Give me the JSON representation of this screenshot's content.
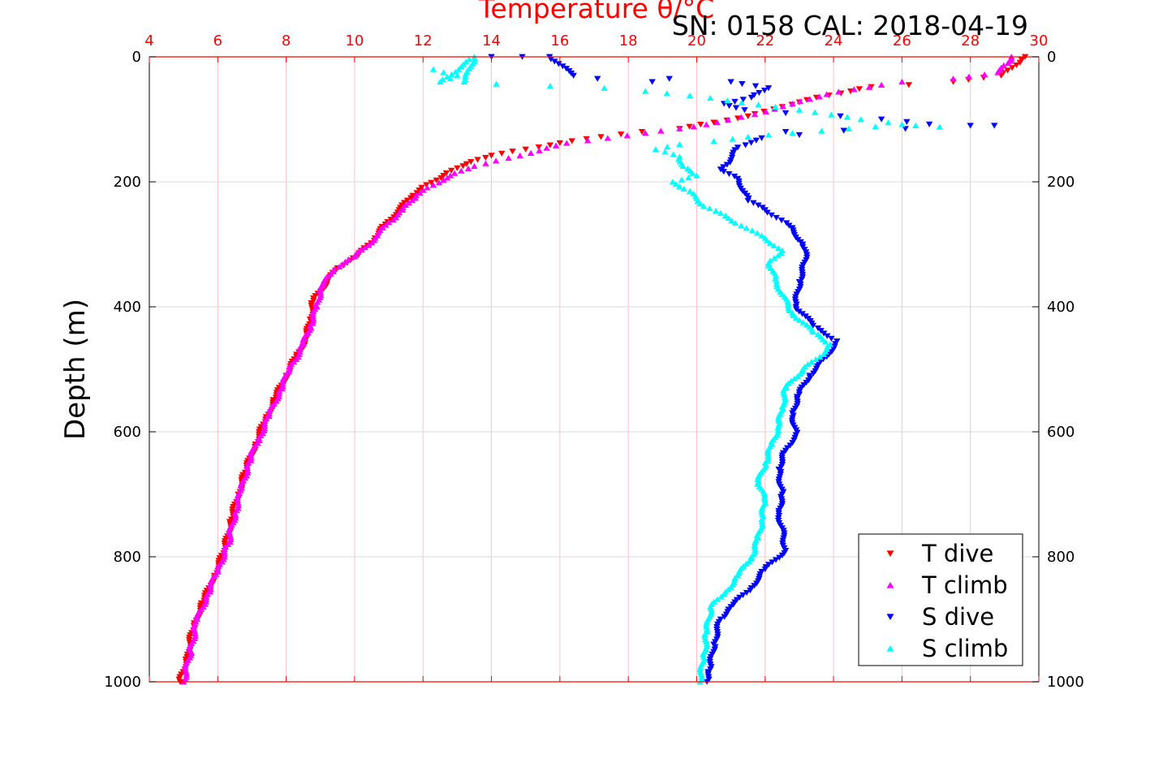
{
  "chart_data": {
    "type": "scatter",
    "title": "Temperature θ/°C",
    "subtitle": "SN: 0158  CAL: 2018-04-19",
    "ylabel": "Depth (m)",
    "x_top": {
      "label": "Temperature θ/°C",
      "range": [
        4,
        30
      ],
      "ticks": [
        "4",
        "6",
        "8",
        "10",
        "12",
        "14",
        "16",
        "18",
        "20",
        "22",
        "24",
        "26",
        "28",
        "30"
      ],
      "color": "#ff0000"
    },
    "y": {
      "range": [
        0,
        1000
      ],
      "reversed": true,
      "ticks": [
        "0",
        "200",
        "400",
        "600",
        "800",
        "1000"
      ]
    },
    "grid": true,
    "legend_position": "bottom-right",
    "colors": {
      "t_dive": "#ff0000",
      "t_climb": "#ff00ff",
      "s_dive": "#0000ff",
      "s_climb": "#00ffff",
      "axis_top": "#ff0000",
      "grid_vertical": "#ffc0cb",
      "grid_horizontal": "#d9d9d9"
    },
    "series": [
      {
        "name": "T dive",
        "marker": "triangle-down",
        "color": "#ff0000",
        "points": [
          [
            29.6,
            0
          ],
          [
            29.5,
            5
          ],
          [
            28.9,
            30
          ],
          [
            27.5,
            40
          ],
          [
            26.2,
            45
          ],
          [
            25.1,
            48
          ],
          [
            24.5,
            55
          ],
          [
            23.5,
            65
          ],
          [
            22.5,
            80
          ],
          [
            21.5,
            95
          ],
          [
            20.5,
            105
          ],
          [
            19.5,
            115
          ],
          [
            18.4,
            120
          ],
          [
            17.2,
            128
          ],
          [
            16.0,
            138
          ],
          [
            15.0,
            148
          ],
          [
            14.0,
            158
          ],
          [
            13.4,
            168
          ],
          [
            13.0,
            178
          ],
          [
            12.6,
            190
          ],
          [
            12.1,
            205
          ],
          [
            11.7,
            222
          ],
          [
            11.3,
            245
          ],
          [
            10.9,
            268
          ],
          [
            10.6,
            290
          ],
          [
            10.1,
            318
          ],
          [
            9.5,
            338
          ],
          [
            9.2,
            360
          ],
          [
            8.8,
            390
          ],
          [
            8.7,
            420
          ],
          [
            8.6,
            450
          ],
          [
            8.3,
            480
          ],
          [
            8.0,
            510
          ],
          [
            7.7,
            545
          ],
          [
            7.4,
            580
          ],
          [
            7.1,
            620
          ],
          [
            6.8,
            665
          ],
          [
            6.6,
            700
          ],
          [
            6.4,
            740
          ],
          [
            6.2,
            790
          ],
          [
            5.9,
            830
          ],
          [
            5.6,
            870
          ],
          [
            5.3,
            910
          ],
          [
            5.1,
            960
          ],
          [
            4.9,
            1000
          ]
        ]
      },
      {
        "name": "T climb",
        "marker": "triangle-up",
        "color": "#ff00ff",
        "points": [
          [
            29.2,
            0
          ],
          [
            29.1,
            10
          ],
          [
            28.8,
            25
          ],
          [
            27.5,
            35
          ],
          [
            26.0,
            40
          ],
          [
            25.4,
            45
          ],
          [
            24.6,
            52
          ],
          [
            23.8,
            60
          ],
          [
            22.8,
            75
          ],
          [
            21.7,
            92
          ],
          [
            20.6,
            105
          ],
          [
            19.5,
            115
          ],
          [
            18.5,
            122
          ],
          [
            17.4,
            130
          ],
          [
            16.2,
            138
          ],
          [
            15.4,
            150
          ],
          [
            14.5,
            162
          ],
          [
            13.5,
            175
          ],
          [
            12.8,
            190
          ],
          [
            12.3,
            205
          ],
          [
            11.8,
            222
          ],
          [
            11.4,
            245
          ],
          [
            11.0,
            265
          ],
          [
            10.6,
            290
          ],
          [
            10.0,
            320
          ],
          [
            9.4,
            340
          ],
          [
            9.0,
            370
          ],
          [
            8.9,
            400
          ],
          [
            8.7,
            430
          ],
          [
            8.5,
            460
          ],
          [
            8.1,
            500
          ],
          [
            7.8,
            535
          ],
          [
            7.5,
            575
          ],
          [
            7.2,
            610
          ],
          [
            6.9,
            650
          ],
          [
            6.7,
            690
          ],
          [
            6.5,
            730
          ],
          [
            6.3,
            780
          ],
          [
            6.0,
            820
          ],
          [
            5.7,
            860
          ],
          [
            5.4,
            900
          ],
          [
            5.2,
            950
          ],
          [
            5.0,
            1000
          ]
        ]
      },
      {
        "name": "S dive",
        "marker": "triangle-down",
        "color": "#0000ff",
        "points": [
          [
            14.0,
            0
          ],
          [
            14.9,
            0
          ],
          [
            15.7,
            0
          ],
          [
            16.4,
            30
          ],
          [
            17.1,
            35
          ],
          [
            18.7,
            40
          ],
          [
            19.2,
            35
          ],
          [
            21.0,
            40
          ],
          [
            22.1,
            50
          ],
          [
            21.6,
            65
          ],
          [
            20.8,
            75
          ],
          [
            21.4,
            85
          ],
          [
            22.6,
            90
          ],
          [
            24.2,
            95
          ],
          [
            25.4,
            100
          ],
          [
            26.8,
            108
          ],
          [
            28.0,
            110
          ],
          [
            28.7,
            110
          ],
          [
            26.1,
            115
          ],
          [
            24.3,
            118
          ],
          [
            22.6,
            120
          ],
          [
            23.0,
            125
          ],
          [
            21.9,
            130
          ],
          [
            21.2,
            145
          ],
          [
            21.0,
            165
          ],
          [
            20.7,
            180
          ],
          [
            21.2,
            195
          ],
          [
            21.5,
            230
          ],
          [
            22.0,
            245
          ],
          [
            22.7,
            270
          ],
          [
            23.1,
            300
          ],
          [
            23.2,
            325
          ],
          [
            23.0,
            360
          ],
          [
            22.9,
            400
          ],
          [
            23.4,
            430
          ],
          [
            24.1,
            455
          ],
          [
            23.8,
            480
          ],
          [
            23.3,
            510
          ],
          [
            23.0,
            540
          ],
          [
            22.8,
            570
          ],
          [
            22.9,
            605
          ],
          [
            22.6,
            630
          ],
          [
            22.4,
            660
          ],
          [
            22.5,
            700
          ],
          [
            22.4,
            730
          ],
          [
            22.6,
            790
          ],
          [
            22.0,
            820
          ],
          [
            21.6,
            850
          ],
          [
            21.0,
            880
          ],
          [
            20.7,
            900
          ],
          [
            20.5,
            940
          ],
          [
            20.4,
            980
          ],
          [
            20.3,
            1000
          ]
        ]
      },
      {
        "name": "S climb",
        "marker": "triangle-up",
        "color": "#00ffff",
        "points": [
          [
            12.3,
            20
          ],
          [
            12.6,
            25
          ],
          [
            13.0,
            30
          ],
          [
            12.8,
            35
          ],
          [
            13.2,
            40
          ],
          [
            13.4,
            15
          ],
          [
            13.5,
            0
          ],
          [
            12.5,
            40
          ],
          [
            17.3,
            50
          ],
          [
            18.5,
            55
          ],
          [
            19.8,
            62
          ],
          [
            20.9,
            70
          ],
          [
            22.3,
            80
          ],
          [
            23.0,
            85
          ],
          [
            24.8,
            100
          ],
          [
            25.6,
            105
          ],
          [
            26.4,
            110
          ],
          [
            27.1,
            112
          ],
          [
            26.0,
            108
          ],
          [
            22.8,
            122
          ],
          [
            21.5,
            128
          ],
          [
            20.5,
            135
          ],
          [
            19.5,
            140
          ],
          [
            18.8,
            148
          ],
          [
            19.5,
            160
          ],
          [
            19.6,
            175
          ],
          [
            20.0,
            190
          ],
          [
            19.3,
            200
          ],
          [
            19.8,
            215
          ],
          [
            20.1,
            235
          ],
          [
            20.7,
            250
          ],
          [
            21.3,
            270
          ],
          [
            22.0,
            290
          ],
          [
            22.5,
            310
          ],
          [
            22.1,
            330
          ],
          [
            22.3,
            355
          ],
          [
            22.5,
            380
          ],
          [
            22.8,
            410
          ],
          [
            23.4,
            440
          ],
          [
            23.9,
            460
          ],
          [
            23.6,
            480
          ],
          [
            23.1,
            500
          ],
          [
            22.6,
            530
          ],
          [
            22.5,
            560
          ],
          [
            22.4,
            590
          ],
          [
            22.2,
            620
          ],
          [
            22.0,
            650
          ],
          [
            21.8,
            680
          ],
          [
            22.0,
            710
          ],
          [
            21.9,
            740
          ],
          [
            21.8,
            770
          ],
          [
            21.6,
            800
          ],
          [
            21.2,
            830
          ],
          [
            20.8,
            860
          ],
          [
            20.4,
            880
          ],
          [
            20.3,
            920
          ],
          [
            20.2,
            960
          ],
          [
            20.1,
            1000
          ]
        ]
      }
    ]
  }
}
